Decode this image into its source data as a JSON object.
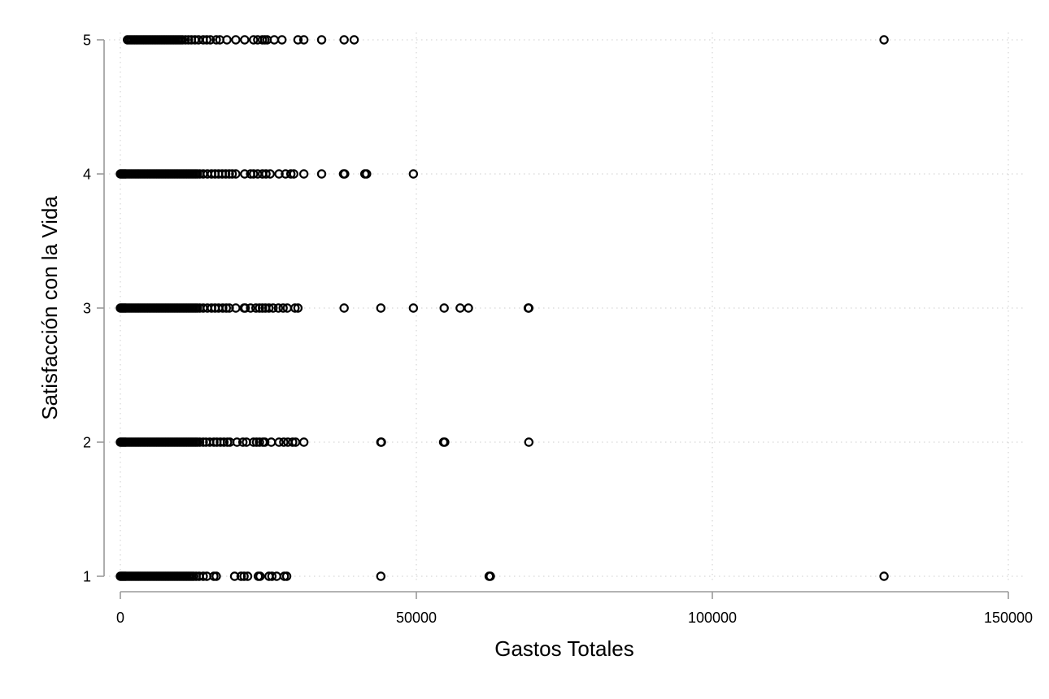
{
  "chart_data": {
    "type": "scatter",
    "title": "",
    "xlabel": "Gastos Totales",
    "ylabel": "Satisfacción con la Vida",
    "xlim": [
      0,
      150000
    ],
    "ylim": [
      1,
      5
    ],
    "xticks": [
      0,
      50000,
      100000,
      150000
    ],
    "xtick_labels": [
      "0",
      "50000",
      "100000",
      "150000"
    ],
    "yticks": [
      1,
      2,
      3,
      4,
      5
    ],
    "ytick_labels": [
      "1",
      "2",
      "3",
      "4",
      "5"
    ],
    "grid": true,
    "marker": "hollow-circle",
    "marker_color": "#000000",
    "series": [
      {
        "points": [
          {
            "y": 5,
            "x": [
              1200,
              1500,
              1800,
              2100,
              2400,
              2700,
              3000,
              3300,
              3600,
              3900,
              4200,
              4500,
              4800,
              5100,
              5400,
              5700,
              6000,
              6300,
              6600,
              6900,
              7200,
              7500,
              7800,
              8100,
              8400,
              8700,
              9000,
              9300,
              9600,
              9900,
              10200,
              10500,
              11000,
              11500,
              12000,
              12600,
              13200,
              14000,
              14600,
              15200,
              16200,
              16800,
              18000,
              19500,
              21000,
              22500,
              23200,
              24000,
              24400,
              24800,
              26000,
              27300,
              30000,
              31000,
              34000,
              37800,
              39500,
              129000
            ]
          },
          {
            "y": 4,
            "x": [
              0,
              200,
              400,
              600,
              800,
              1000,
              1300,
              1600,
              1900,
              2200,
              2500,
              2800,
              3100,
              3400,
              3700,
              4000,
              4300,
              4600,
              4900,
              5200,
              5500,
              5800,
              6100,
              6400,
              6700,
              7000,
              7300,
              7600,
              7900,
              8200,
              8500,
              8800,
              9100,
              9400,
              9700,
              10000,
              10300,
              10600,
              10900,
              11200,
              11500,
              11800,
              12100,
              12400,
              12700,
              13000,
              13400,
              14000,
              14700,
              15400,
              16000,
              16600,
              17200,
              17800,
              18400,
              18900,
              19500,
              21000,
              22000,
              22500,
              23200,
              24000,
              24600,
              25300,
              26800,
              27900,
              28800,
              29300,
              31000,
              34000,
              37700,
              37900,
              41300,
              41600,
              49500
            ]
          },
          {
            "y": 3,
            "x": [
              0,
              200,
              400,
              600,
              800,
              1000,
              1300,
              1600,
              1900,
              2200,
              2500,
              2800,
              3100,
              3400,
              3700,
              4000,
              4300,
              4600,
              4900,
              5200,
              5500,
              5800,
              6100,
              6400,
              6700,
              7000,
              7300,
              7600,
              7900,
              8200,
              8500,
              8800,
              9100,
              9400,
              9700,
              10000,
              10300,
              10600,
              10900,
              11200,
              11500,
              11800,
              12100,
              12400,
              12700,
              13000,
              13400,
              14000,
              14700,
              15400,
              16000,
              16600,
              17300,
              17900,
              18400,
              19500,
              20900,
              21100,
              22000,
              22900,
              23500,
              24000,
              24500,
              25100,
              25800,
              26700,
              27500,
              28200,
              29500,
              30000,
              37800,
              44000,
              49500,
              54700,
              57400,
              58800,
              68900,
              69000
            ]
          },
          {
            "y": 2,
            "x": [
              0,
              200,
              400,
              600,
              800,
              1000,
              1300,
              1600,
              1900,
              2200,
              2500,
              2800,
              3100,
              3400,
              3700,
              4000,
              4300,
              4600,
              4900,
              5200,
              5500,
              5800,
              6100,
              6400,
              6700,
              7000,
              7300,
              7600,
              7900,
              8200,
              8500,
              8800,
              9100,
              9400,
              9700,
              10000,
              10300,
              10600,
              10900,
              11200,
              11500,
              11800,
              12100,
              12400,
              12700,
              13000,
              13400,
              14000,
              14500,
              15100,
              15800,
              16300,
              16900,
              17500,
              18100,
              18500,
              19700,
              20700,
              21300,
              22500,
              23000,
              23500,
              24100,
              24400,
              25500,
              26800,
              27600,
              28300,
              29100,
              29600,
              31000,
              44000,
              44100,
              54600,
              54800,
              69000
            ]
          },
          {
            "y": 1,
            "x": [
              0,
              200,
              400,
              600,
              800,
              1000,
              1300,
              1600,
              1900,
              2200,
              2500,
              2800,
              3100,
              3400,
              3700,
              4000,
              4300,
              4600,
              4900,
              5200,
              5500,
              5800,
              6100,
              6400,
              6700,
              7000,
              7300,
              7600,
              7900,
              8200,
              8500,
              8800,
              9100,
              9400,
              9700,
              10000,
              10300,
              10600,
              10900,
              11200,
              11500,
              11800,
              12100,
              12400,
              12800,
              13300,
              14000,
              14600,
              15800,
              16200,
              19300,
              20400,
              20900,
              21500,
              23300,
              23600,
              25100,
              25600,
              26400,
              27700,
              28100,
              44000,
              62300,
              62500,
              129000
            ]
          }
        ]
      }
    ]
  }
}
